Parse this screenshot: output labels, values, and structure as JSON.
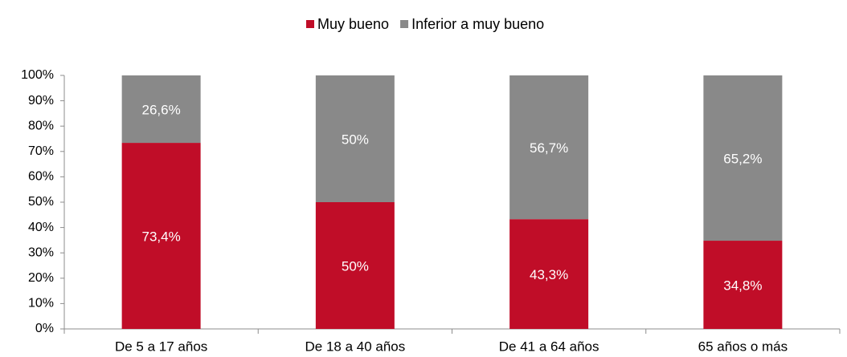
{
  "chart_data": {
    "type": "stacked_bar",
    "categories": [
      "De 5 a 17 años",
      "De 18 a 40 años",
      "De 41 a 64 años",
      "65 años o más"
    ],
    "series": [
      {
        "name": "Muy bueno",
        "color": "#c00d28",
        "values": [
          73.4,
          50,
          43.3,
          34.8
        ],
        "value_labels": [
          "73,4%",
          "50%",
          "43,3%",
          "34,8%"
        ]
      },
      {
        "name": "Inferior a muy bueno",
        "color": "#898989",
        "values": [
          26.6,
          50,
          56.7,
          65.2
        ],
        "value_labels": [
          "26,6%",
          "50%",
          "56,7%",
          "65,2%"
        ]
      }
    ],
    "ylim": [
      0,
      100
    ],
    "yticks": [
      {
        "value": 0,
        "label": "0%"
      },
      {
        "value": 10,
        "label": "10%"
      },
      {
        "value": 20,
        "label": "20%"
      },
      {
        "value": 30,
        "label": "30%"
      },
      {
        "value": 40,
        "label": "40%"
      },
      {
        "value": 50,
        "label": "50%"
      },
      {
        "value": 60,
        "label": "60%"
      },
      {
        "value": 70,
        "label": "70%"
      },
      {
        "value": 80,
        "label": "80%"
      },
      {
        "value": 90,
        "label": "90%"
      },
      {
        "value": 100,
        "label": "100%"
      }
    ],
    "grid": false,
    "legend": "top"
  }
}
